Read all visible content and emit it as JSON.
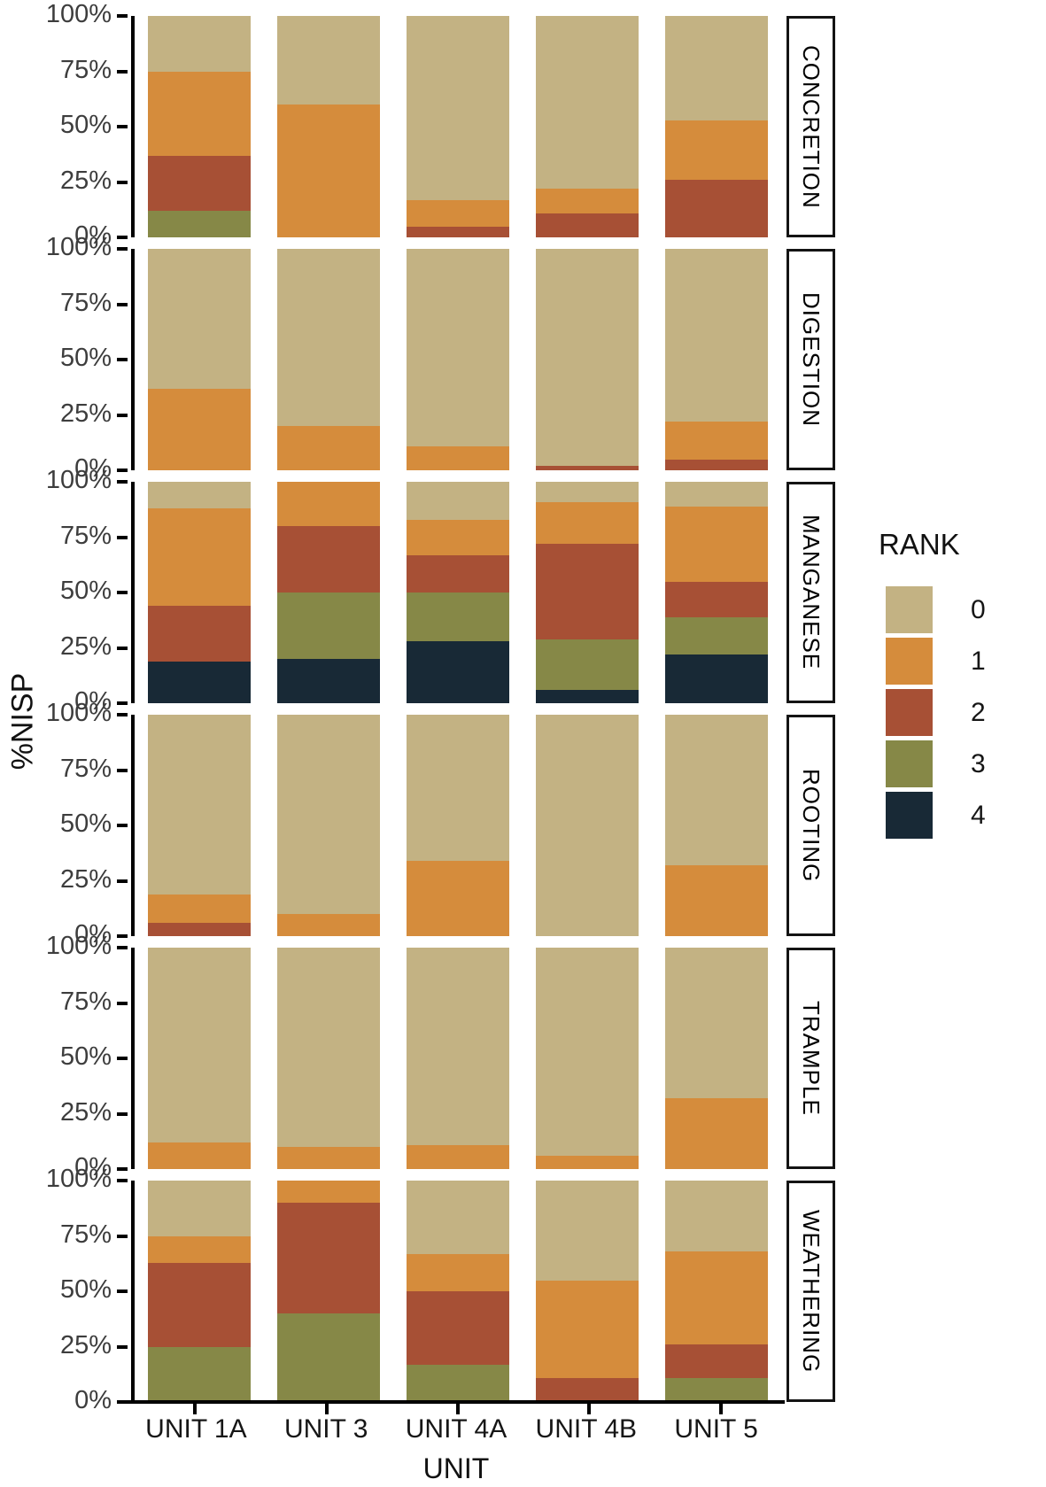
{
  "chart_data": {
    "type": "bar",
    "subtype": "stacked-percent-faceted",
    "title": "",
    "xlabel": "UNIT",
    "ylabel": "%NISP",
    "categories": [
      "UNIT 1A",
      "UNIT 3",
      "UNIT 4A",
      "UNIT 4B",
      "UNIT 5"
    ],
    "y_ticks": [
      {
        "label": "100%",
        "pos": 0
      },
      {
        "label": "75%",
        "pos": 25
      },
      {
        "label": "50%",
        "pos": 50
      },
      {
        "label": "25%",
        "pos": 75
      },
      {
        "label": "0%",
        "pos": 100
      }
    ],
    "ylim": [
      0,
      100
    ],
    "grid": false,
    "legend": {
      "title": "RANK",
      "position": "right",
      "entries": [
        {
          "label": "0",
          "color": "#c3b283"
        },
        {
          "label": "1",
          "color": "#d58c3c"
        },
        {
          "label": "2",
          "color": "#a75035"
        },
        {
          "label": "3",
          "color": "#868847"
        },
        {
          "label": "4",
          "color": "#182936"
        }
      ]
    },
    "stack_order_bottom_to_top": [
      "4",
      "3",
      "2",
      "1",
      "0"
    ],
    "facets": [
      {
        "label": "CONCRETION",
        "values_pct_rank0_to_4": [
          [
            25,
            38,
            25,
            12,
            0
          ],
          [
            40,
            60,
            0,
            0,
            0
          ],
          [
            83,
            12,
            5,
            0,
            0
          ],
          [
            78,
            11,
            11,
            0,
            0
          ],
          [
            47,
            27,
            26,
            0,
            0
          ]
        ]
      },
      {
        "label": "DIGESTION",
        "values_pct_rank0_to_4": [
          [
            63,
            37,
            0,
            0,
            0
          ],
          [
            80,
            20,
            0,
            0,
            0
          ],
          [
            89,
            11,
            0,
            0,
            0
          ],
          [
            98,
            0,
            2,
            0,
            0
          ],
          [
            78,
            17,
            5,
            0,
            0
          ]
        ]
      },
      {
        "label": "MANGANESE",
        "values_pct_rank0_to_4": [
          [
            12,
            44,
            25,
            0,
            19
          ],
          [
            0,
            20,
            30,
            30,
            20
          ],
          [
            17,
            16,
            17,
            22,
            28
          ],
          [
            9,
            19,
            43,
            23,
            6
          ],
          [
            11,
            34,
            16,
            17,
            22
          ]
        ]
      },
      {
        "label": "ROOTING",
        "values_pct_rank0_to_4": [
          [
            81,
            13,
            6,
            0,
            0
          ],
          [
            90,
            10,
            0,
            0,
            0
          ],
          [
            66,
            34,
            0,
            0,
            0
          ],
          [
            100,
            0,
            0,
            0,
            0
          ],
          [
            68,
            32,
            0,
            0,
            0
          ]
        ]
      },
      {
        "label": "TRAMPLE",
        "values_pct_rank0_to_4": [
          [
            88,
            12,
            0,
            0,
            0
          ],
          [
            90,
            10,
            0,
            0,
            0
          ],
          [
            89,
            11,
            0,
            0,
            0
          ],
          [
            94,
            6,
            0,
            0,
            0
          ],
          [
            68,
            32,
            0,
            0,
            0
          ]
        ]
      },
      {
        "label": "WEATHERING",
        "values_pct_rank0_to_4": [
          [
            25,
            12,
            38,
            25,
            0
          ],
          [
            0,
            10,
            50,
            40,
            0
          ],
          [
            33,
            17,
            33,
            17,
            0
          ],
          [
            45,
            44,
            11,
            0,
            0
          ],
          [
            32,
            42,
            15,
            11,
            0
          ]
        ]
      }
    ]
  }
}
